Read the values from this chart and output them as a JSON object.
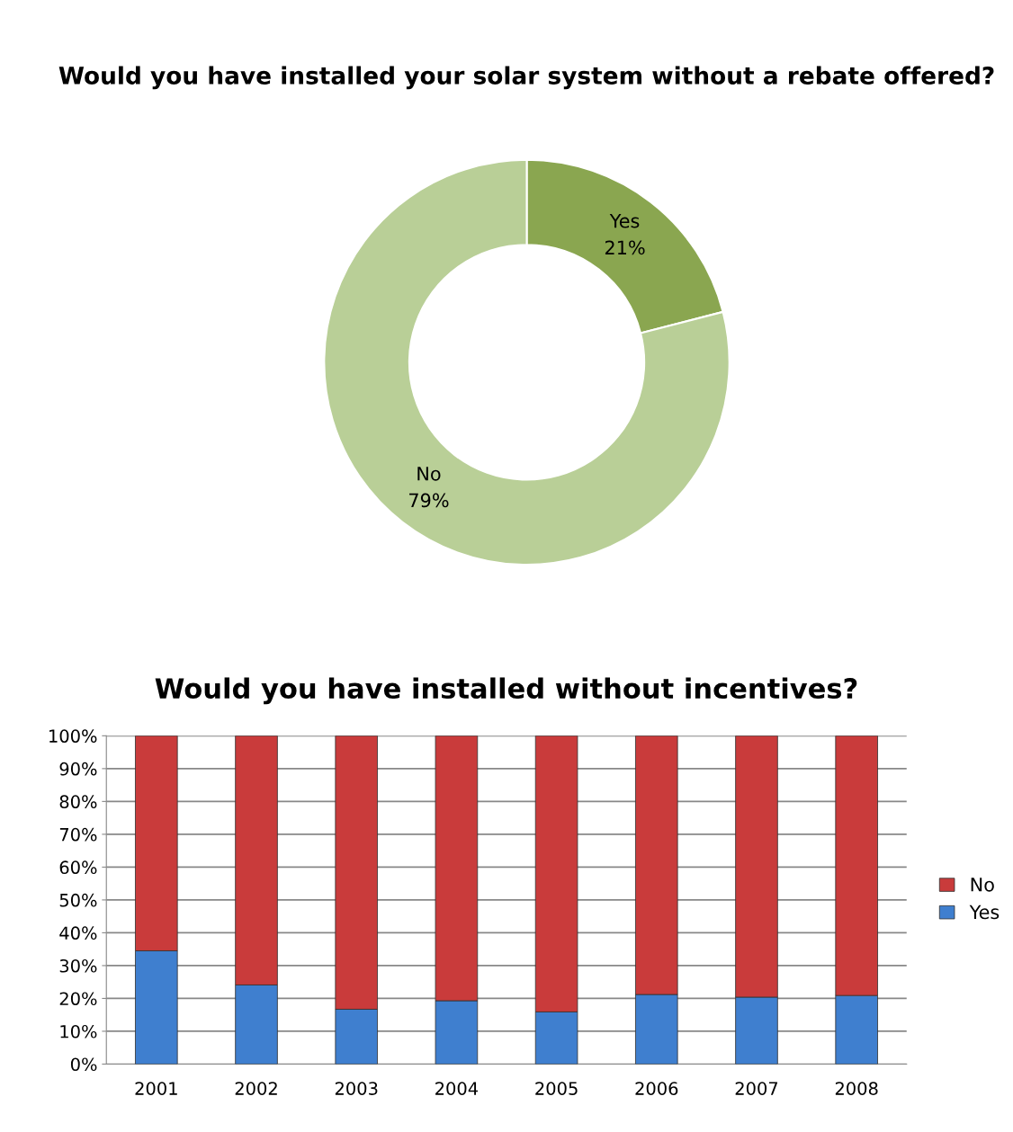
{
  "chart_data": [
    {
      "type": "donut",
      "title": "Would you have installed your solar system without a rebate offered?",
      "categories": [
        "Yes",
        "No"
      ],
      "values": [
        21,
        79
      ],
      "colors": [
        "#8aa650",
        "#b9cf97"
      ],
      "value_labels": [
        "21%",
        "79%"
      ],
      "legend": false
    },
    {
      "type": "bar",
      "title": "Would you have installed without incentives?",
      "stacked": true,
      "categories": [
        "2001",
        "2002",
        "2003",
        "2004",
        "2005",
        "2006",
        "2007",
        "2008"
      ],
      "series": [
        {
          "name": "Yes",
          "color": "#3f7fcf",
          "values": [
            34.5,
            24.1,
            16.7,
            19.3,
            15.9,
            21.2,
            20.4,
            20.9
          ]
        },
        {
          "name": "No",
          "color": "#c93b3b",
          "values": [
            65.5,
            75.9,
            83.3,
            80.7,
            84.1,
            78.8,
            79.6,
            79.1
          ]
        }
      ],
      "ylim": [
        0,
        100
      ],
      "yticks": [
        {
          "value": 0,
          "label": "0%"
        },
        {
          "value": 10,
          "label": "10%"
        },
        {
          "value": 20,
          "label": "20%"
        },
        {
          "value": 30,
          "label": "30%"
        },
        {
          "value": 40,
          "label": "40%"
        },
        {
          "value": 50,
          "label": "50%"
        },
        {
          "value": 60,
          "label": "60%"
        },
        {
          "value": 70,
          "label": "70%"
        },
        {
          "value": 80,
          "label": "80%"
        },
        {
          "value": 90,
          "label": "90%"
        },
        {
          "value": 100,
          "label": "100%"
        }
      ],
      "grid": "y",
      "legend": "right"
    }
  ]
}
